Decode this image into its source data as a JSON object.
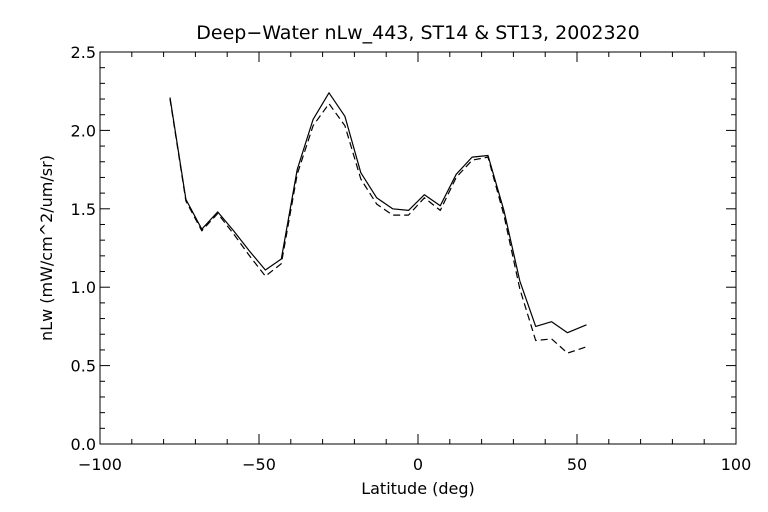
{
  "chart_data": {
    "type": "line",
    "title": "Deep−Water nLw_443, ST14 & ST13, 2002320",
    "xlabel": "Latitude (deg)",
    "ylabel": "nLw (mW/cm^2/um/sr)",
    "xlim": [
      -100,
      100
    ],
    "ylim": [
      0,
      2.5
    ],
    "x_ticks": [
      -100,
      -50,
      0,
      50,
      100
    ],
    "x_tick_labels": [
      "−100",
      "−50",
      "0",
      "50",
      "100"
    ],
    "y_ticks": [
      0,
      0.5,
      1,
      1.5,
      2,
      2.5
    ],
    "y_tick_labels": [
      "0.0",
      "0.5",
      "1.0",
      "1.5",
      "2.0",
      "2.5"
    ],
    "grid": false,
    "legend": "none",
    "series": [
      {
        "style": "solid",
        "color": "#000000",
        "x": [
          -78,
          -73,
          -68,
          -63,
          -58,
          -53,
          -48,
          -43,
          -38,
          -33,
          -28,
          -23,
          -18,
          -13,
          -8,
          -3,
          2,
          7,
          12,
          17,
          22,
          27,
          32,
          37,
          42,
          47,
          53
        ],
        "y": [
          2.21,
          1.56,
          1.37,
          1.48,
          1.36,
          1.23,
          1.11,
          1.18,
          1.75,
          2.07,
          2.24,
          2.09,
          1.73,
          1.57,
          1.5,
          1.49,
          1.59,
          1.52,
          1.72,
          1.83,
          1.84,
          1.49,
          1.04,
          0.75,
          0.78,
          0.71,
          0.76
        ]
      },
      {
        "style": "dashed",
        "color": "#000000",
        "x": [
          -78,
          -73,
          -68,
          -63,
          -58,
          -53,
          -48,
          -43,
          -38,
          -33,
          -28,
          -23,
          -18,
          -13,
          -8,
          -3,
          2,
          7,
          12,
          17,
          22,
          27,
          32,
          37,
          42,
          47,
          53
        ],
        "y": [
          2.2,
          1.55,
          1.36,
          1.47,
          1.34,
          1.2,
          1.07,
          1.15,
          1.72,
          2.03,
          2.17,
          2.03,
          1.69,
          1.53,
          1.46,
          1.46,
          1.57,
          1.49,
          1.7,
          1.81,
          1.83,
          1.46,
          0.99,
          0.66,
          0.67,
          0.58,
          0.62
        ]
      }
    ]
  }
}
